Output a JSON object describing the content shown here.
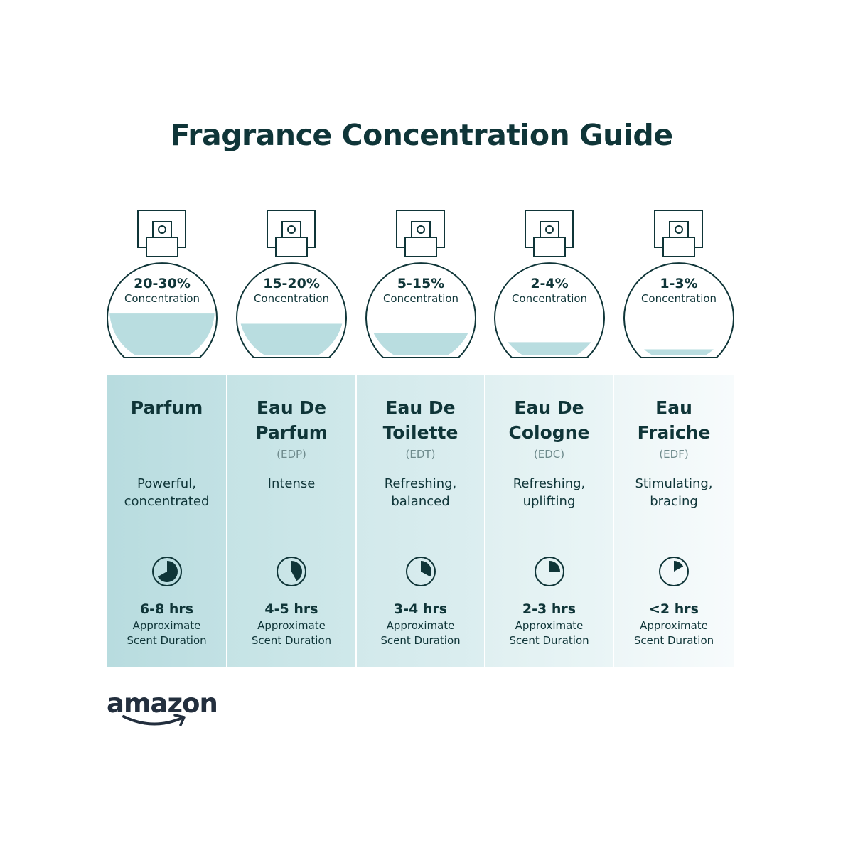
{
  "title": "Fragrance Concentration Guide",
  "colors": {
    "text": "#0f3538",
    "liquid": "#b9dde0",
    "panel_dark": "#b8dcdf",
    "panel_light": "#f3f9fa",
    "abbr": "#6e8a8c"
  },
  "types": [
    {
      "concentration": "20-30%",
      "concentration_label": "Concentration",
      "fill_level": 0.43,
      "name_line1": "Parfum",
      "name_line2": "",
      "abbr": "",
      "desc_line1": "Powerful,",
      "desc_line2": "concentrated",
      "clock_fraction": 0.67,
      "hours": "6-8 hrs",
      "approx_line1": "Approximate",
      "approx_line2": "Scent Duration"
    },
    {
      "concentration": "15-20%",
      "concentration_label": "Concentration",
      "fill_level": 0.33,
      "name_line1": "Eau De",
      "name_line2": "Parfum",
      "abbr": "(EDP)",
      "desc_line1": "Intense",
      "desc_line2": "",
      "clock_fraction": 0.42,
      "hours": "4-5 hrs",
      "approx_line1": "Approximate",
      "approx_line2": "Scent Duration"
    },
    {
      "concentration": "5-15%",
      "concentration_label": "Concentration",
      "fill_level": 0.24,
      "name_line1": "Eau De",
      "name_line2": "Toilette",
      "abbr": "(EDT)",
      "desc_line1": "Refreshing,",
      "desc_line2": "balanced",
      "clock_fraction": 0.33,
      "hours": "3-4 hrs",
      "approx_line1": "Approximate",
      "approx_line2": "Scent Duration"
    },
    {
      "concentration": "2-4%",
      "concentration_label": "Concentration",
      "fill_level": 0.15,
      "name_line1": "Eau De",
      "name_line2": "Cologne",
      "abbr": "(EDC)",
      "desc_line1": "Refreshing,",
      "desc_line2": "uplifting",
      "clock_fraction": 0.25,
      "hours": "2-3 hrs",
      "approx_line1": "Approximate",
      "approx_line2": "Scent Duration"
    },
    {
      "concentration": "1-3%",
      "concentration_label": "Concentration",
      "fill_level": 0.08,
      "name_line1": "Eau",
      "name_line2": "Fraiche",
      "abbr": "(EDF)",
      "desc_line1": "Stimulating,",
      "desc_line2": "bracing",
      "clock_fraction": 0.17,
      "hours": "<2 hrs",
      "approx_line1": "Approximate",
      "approx_line2": "Scent Duration"
    }
  ],
  "logo": {
    "text": "amazon",
    "icon": "amazon-smile-arrow"
  }
}
